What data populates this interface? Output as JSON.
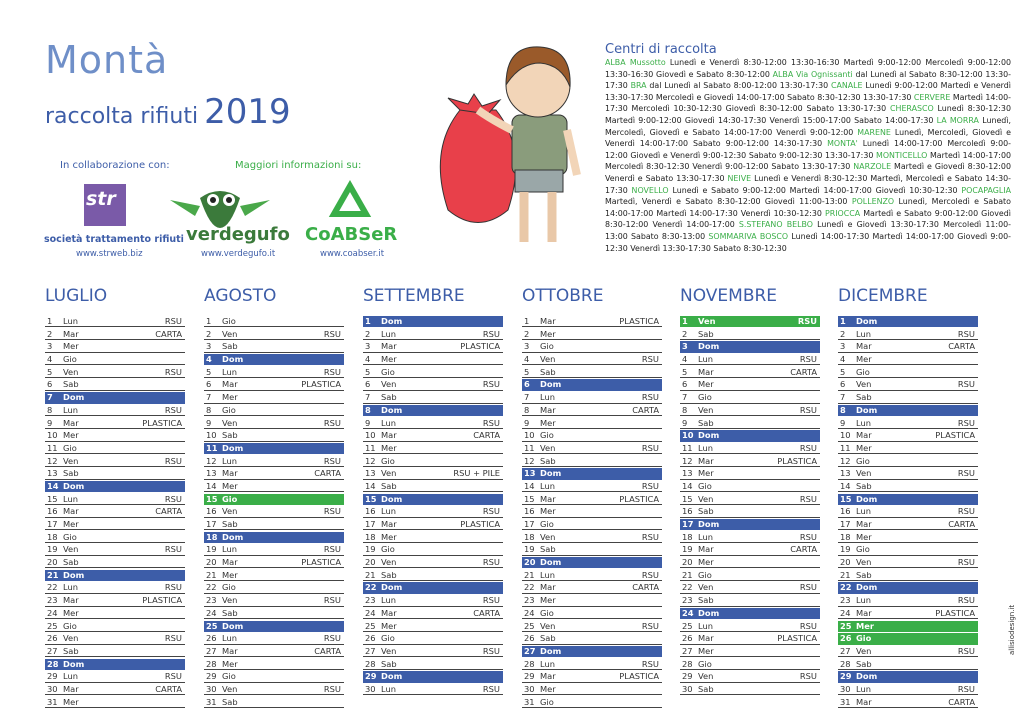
{
  "header": {
    "town": "Montà",
    "subtitle": "raccolta rifiuti",
    "year": "2019",
    "collab_label": "In collaborazione con:",
    "info_label": "Maggiori informazioni su:",
    "logos": [
      {
        "name": "str",
        "caption": "società trattamento rifiuti",
        "url": "www.strweb.biz"
      },
      {
        "name": "verdegufo",
        "url": "www.verdegufo.it"
      },
      {
        "name": "CoABSeR",
        "url": "www.coabser.it"
      }
    ]
  },
  "centers": {
    "title": "Centri di raccolta",
    "entries": [
      {
        "place": "ALBA Mussotto",
        "hours": "Lunedì e Venerdì 8:30-12:00 13:30-16:30 Martedì 9:00-12:00 Mercoledì 9:00-12:00 13:30-16:30 Giovedì e Sabato 8:30-12:00"
      },
      {
        "place": "ALBA Via Ognissanti",
        "hours": "dal Lunedì al Sabato 8:30-12:00 13:30-17:30"
      },
      {
        "place": "BRA",
        "hours": "dal Lunedì al Sabato 8:00-12:00 13:30-17:30"
      },
      {
        "place": "CANALE",
        "hours": "Lunedì 9:00-12:00 Martedì e Venerdì 13:30-17:30 Mercoledì e Giovedì 14:00-17:00 Sabato 8:30-12:30 13:30-17:30"
      },
      {
        "place": "CERVERE",
        "hours": "Martedì 14:00-17:30 Mercoledì 10:30-12:30 Giovedì 8:30-12:00 Sabato 13:30-17:30"
      },
      {
        "place": "CHERASCO",
        "hours": "Lunedì 8:30-12:30 Martedì 9:00-12:00 Giovedì 14:30-17:30 Venerdì 15:00-17:00 Sabato 14:00-17:30"
      },
      {
        "place": "LA MORRA",
        "hours": "Lunedì, Mercoledì, Giovedì e Sabato 14:00-17:00 Venerdì 9:00-12:00"
      },
      {
        "place": "MARENE",
        "hours": "Lunedì, Mercoledì, Giovedì e Venerdì 14:00-17:00 Sabato 9:00-12:00 14:30-17:30"
      },
      {
        "place": "MONTA'",
        "hours": "Lunedì 14:00-17:00 Mercoledì 9:00-12:00 Giovedì e Venerdì 9:00-12:30 Sabato 9:00-12:30 13:30-17:30"
      },
      {
        "place": "MONTICELLO",
        "hours": "Martedì 14:00-17:00 Mercoledì 8:30-12:30 Venerdì 9:00-12:00 Sabato 13:30-17:30"
      },
      {
        "place": "NARZOLE",
        "hours": "Martedì e Giovedì 8:30-12:00 Venerdì e Sabato 13:30-17:30"
      },
      {
        "place": "NEIVE",
        "hours": "Lunedì e Venerdì 8:30-12:30 Martedì, Mercoledì e Sabato 14:30-17:30"
      },
      {
        "place": "NOVELLO",
        "hours": "Lunedì e Sabato 9:00-12:00 Martedì 14:00-17:00 Giovedì 10:30-12:30"
      },
      {
        "place": "POCAPAGLIA",
        "hours": "Martedì, Venerdì e Sabato 8:30-12:00 Giovedì 11:00-13:00"
      },
      {
        "place": "POLLENZO",
        "hours": "Lunedì, Mercoledì e Sabato 14:00-17:00 Martedì 14:00-17:30 Venerdì 10:30-12:30"
      },
      {
        "place": "PRIOCCA",
        "hours": "Martedì e Sabato 9:00-12:00 Giovedì 8:30-12:00 Venerdì 14:00-17:00"
      },
      {
        "place": "S.STEFANO BELBO",
        "hours": "Lunedì e Giovedì 13:30-17:30 Mercoledì 11:00-13:00 Sabato 8:30-13:00"
      },
      {
        "place": "SOMMARIVA BOSCO",
        "hours": "Lunedì 14:00-17:30 Martedì 14:00-17:00 Giovedì 9:00-12:30 Venerdì 13:30-17:30 Sabato 8:30-12:30"
      }
    ]
  },
  "highlight_colors": {
    "blue": "#3d5da8",
    "green": "#3aae48"
  },
  "months": [
    {
      "name": "LUGLIO",
      "days": [
        {
          "n": 1,
          "w": "Lun",
          "t": "RSU"
        },
        {
          "n": 2,
          "w": "Mar",
          "t": "CARTA"
        },
        {
          "n": 3,
          "w": "Mer"
        },
        {
          "n": 4,
          "w": "Gio"
        },
        {
          "n": 5,
          "w": "Ven",
          "t": "RSU"
        },
        {
          "n": 6,
          "w": "Sab"
        },
        {
          "n": 7,
          "w": "Dom",
          "hl": "blue"
        },
        {
          "n": 8,
          "w": "Lun",
          "t": "RSU"
        },
        {
          "n": 9,
          "w": "Mar",
          "t": "PLASTICA"
        },
        {
          "n": 10,
          "w": "Mer"
        },
        {
          "n": 11,
          "w": "Gio"
        },
        {
          "n": 12,
          "w": "Ven",
          "t": "RSU"
        },
        {
          "n": 13,
          "w": "Sab"
        },
        {
          "n": 14,
          "w": "Dom",
          "hl": "blue"
        },
        {
          "n": 15,
          "w": "Lun",
          "t": "RSU"
        },
        {
          "n": 16,
          "w": "Mar",
          "t": "CARTA"
        },
        {
          "n": 17,
          "w": "Mer"
        },
        {
          "n": 18,
          "w": "Gio"
        },
        {
          "n": 19,
          "w": "Ven",
          "t": "RSU"
        },
        {
          "n": 20,
          "w": "Sab"
        },
        {
          "n": 21,
          "w": "Dom",
          "hl": "blue"
        },
        {
          "n": 22,
          "w": "Lun",
          "t": "RSU"
        },
        {
          "n": 23,
          "w": "Mar",
          "t": "PLASTICA"
        },
        {
          "n": 24,
          "w": "Mer"
        },
        {
          "n": 25,
          "w": "Gio"
        },
        {
          "n": 26,
          "w": "Ven",
          "t": "RSU"
        },
        {
          "n": 27,
          "w": "Sab"
        },
        {
          "n": 28,
          "w": "Dom",
          "hl": "blue"
        },
        {
          "n": 29,
          "w": "Lun",
          "t": "RSU"
        },
        {
          "n": 30,
          "w": "Mar",
          "t": "CARTA"
        },
        {
          "n": 31,
          "w": "Mer"
        }
      ]
    },
    {
      "name": "AGOSTO",
      "days": [
        {
          "n": 1,
          "w": "Gio"
        },
        {
          "n": 2,
          "w": "Ven",
          "t": "RSU"
        },
        {
          "n": 3,
          "w": "Sab"
        },
        {
          "n": 4,
          "w": "Dom",
          "hl": "blue"
        },
        {
          "n": 5,
          "w": "Lun",
          "t": "RSU"
        },
        {
          "n": 6,
          "w": "Mar",
          "t": "PLASTICA"
        },
        {
          "n": 7,
          "w": "Mer"
        },
        {
          "n": 8,
          "w": "Gio"
        },
        {
          "n": 9,
          "w": "Ven",
          "t": "RSU"
        },
        {
          "n": 10,
          "w": "Sab"
        },
        {
          "n": 11,
          "w": "Dom",
          "hl": "blue"
        },
        {
          "n": 12,
          "w": "Lun",
          "t": "RSU"
        },
        {
          "n": 13,
          "w": "Mar",
          "t": "CARTA"
        },
        {
          "n": 14,
          "w": "Mer"
        },
        {
          "n": 15,
          "w": "Gio",
          "hl": "green"
        },
        {
          "n": 16,
          "w": "Ven",
          "t": "RSU"
        },
        {
          "n": 17,
          "w": "Sab"
        },
        {
          "n": 18,
          "w": "Dom",
          "hl": "blue"
        },
        {
          "n": 19,
          "w": "Lun",
          "t": "RSU"
        },
        {
          "n": 20,
          "w": "Mar",
          "t": "PLASTICA"
        },
        {
          "n": 21,
          "w": "Mer"
        },
        {
          "n": 22,
          "w": "Gio"
        },
        {
          "n": 23,
          "w": "Ven",
          "t": "RSU"
        },
        {
          "n": 24,
          "w": "Sab"
        },
        {
          "n": 25,
          "w": "Dom",
          "hl": "blue"
        },
        {
          "n": 26,
          "w": "Lun",
          "t": "RSU"
        },
        {
          "n": 27,
          "w": "Mar",
          "t": "CARTA"
        },
        {
          "n": 28,
          "w": "Mer"
        },
        {
          "n": 29,
          "w": "Gio"
        },
        {
          "n": 30,
          "w": "Ven",
          "t": "RSU"
        },
        {
          "n": 31,
          "w": "Sab"
        }
      ]
    },
    {
      "name": "SETTEMBRE",
      "days": [
        {
          "n": 1,
          "w": "Dom",
          "hl": "blue"
        },
        {
          "n": 2,
          "w": "Lun",
          "t": "RSU"
        },
        {
          "n": 3,
          "w": "Mar",
          "t": "PLASTICA"
        },
        {
          "n": 4,
          "w": "Mer"
        },
        {
          "n": 5,
          "w": "Gio"
        },
        {
          "n": 6,
          "w": "Ven",
          "t": "RSU"
        },
        {
          "n": 7,
          "w": "Sab"
        },
        {
          "n": 8,
          "w": "Dom",
          "hl": "blue"
        },
        {
          "n": 9,
          "w": "Lun",
          "t": "RSU"
        },
        {
          "n": 10,
          "w": "Mar",
          "t": "CARTA"
        },
        {
          "n": 11,
          "w": "Mer"
        },
        {
          "n": 12,
          "w": "Gio"
        },
        {
          "n": 13,
          "w": "Ven",
          "t": "RSU + PILE"
        },
        {
          "n": 14,
          "w": "Sab"
        },
        {
          "n": 15,
          "w": "Dom",
          "hl": "blue"
        },
        {
          "n": 16,
          "w": "Lun",
          "t": "RSU"
        },
        {
          "n": 17,
          "w": "Mar",
          "t": "PLASTICA"
        },
        {
          "n": 18,
          "w": "Mer"
        },
        {
          "n": 19,
          "w": "Gio"
        },
        {
          "n": 20,
          "w": "Ven",
          "t": "RSU"
        },
        {
          "n": 21,
          "w": "Sab"
        },
        {
          "n": 22,
          "w": "Dom",
          "hl": "blue"
        },
        {
          "n": 23,
          "w": "Lun",
          "t": "RSU"
        },
        {
          "n": 24,
          "w": "Mar",
          "t": "CARTA"
        },
        {
          "n": 25,
          "w": "Mer"
        },
        {
          "n": 26,
          "w": "Gio"
        },
        {
          "n": 27,
          "w": "Ven",
          "t": "RSU"
        },
        {
          "n": 28,
          "w": "Sab"
        },
        {
          "n": 29,
          "w": "Dom",
          "hl": "blue"
        },
        {
          "n": 30,
          "w": "Lun",
          "t": "RSU"
        }
      ]
    },
    {
      "name": "OTTOBRE",
      "days": [
        {
          "n": 1,
          "w": "Mar",
          "t": "PLASTICA"
        },
        {
          "n": 2,
          "w": "Mer"
        },
        {
          "n": 3,
          "w": "Gio"
        },
        {
          "n": 4,
          "w": "Ven",
          "t": "RSU"
        },
        {
          "n": 5,
          "w": "Sab"
        },
        {
          "n": 6,
          "w": "Dom",
          "hl": "blue"
        },
        {
          "n": 7,
          "w": "Lun",
          "t": "RSU"
        },
        {
          "n": 8,
          "w": "Mar",
          "t": "CARTA"
        },
        {
          "n": 9,
          "w": "Mer"
        },
        {
          "n": 10,
          "w": "Gio"
        },
        {
          "n": 11,
          "w": "Ven",
          "t": "RSU"
        },
        {
          "n": 12,
          "w": "Sab"
        },
        {
          "n": 13,
          "w": "Dom",
          "hl": "blue"
        },
        {
          "n": 14,
          "w": "Lun",
          "t": "RSU"
        },
        {
          "n": 15,
          "w": "Mar",
          "t": "PLASTICA"
        },
        {
          "n": 16,
          "w": "Mer"
        },
        {
          "n": 17,
          "w": "Gio"
        },
        {
          "n": 18,
          "w": "Ven",
          "t": "RSU"
        },
        {
          "n": 19,
          "w": "Sab"
        },
        {
          "n": 20,
          "w": "Dom",
          "hl": "blue"
        },
        {
          "n": 21,
          "w": "Lun",
          "t": "RSU"
        },
        {
          "n": 22,
          "w": "Mar",
          "t": "CARTA"
        },
        {
          "n": 23,
          "w": "Mer"
        },
        {
          "n": 24,
          "w": "Gio"
        },
        {
          "n": 25,
          "w": "Ven",
          "t": "RSU"
        },
        {
          "n": 26,
          "w": "Sab"
        },
        {
          "n": 27,
          "w": "Dom",
          "hl": "blue"
        },
        {
          "n": 28,
          "w": "Lun",
          "t": "RSU"
        },
        {
          "n": 29,
          "w": "Mar",
          "t": "PLASTICA"
        },
        {
          "n": 30,
          "w": "Mer"
        },
        {
          "n": 31,
          "w": "Gio"
        }
      ]
    },
    {
      "name": "NOVEMBRE",
      "days": [
        {
          "n": 1,
          "w": "Ven",
          "t": "RSU",
          "hl": "green"
        },
        {
          "n": 2,
          "w": "Sab"
        },
        {
          "n": 3,
          "w": "Dom",
          "hl": "blue"
        },
        {
          "n": 4,
          "w": "Lun",
          "t": "RSU"
        },
        {
          "n": 5,
          "w": "Mar",
          "t": "CARTA"
        },
        {
          "n": 6,
          "w": "Mer"
        },
        {
          "n": 7,
          "w": "Gio"
        },
        {
          "n": 8,
          "w": "Ven",
          "t": "RSU"
        },
        {
          "n": 9,
          "w": "Sab"
        },
        {
          "n": 10,
          "w": "Dom",
          "hl": "blue"
        },
        {
          "n": 11,
          "w": "Lun",
          "t": "RSU"
        },
        {
          "n": 12,
          "w": "Mar",
          "t": "PLASTICA"
        },
        {
          "n": 13,
          "w": "Mer"
        },
        {
          "n": 14,
          "w": "Gio"
        },
        {
          "n": 15,
          "w": "Ven",
          "t": "RSU"
        },
        {
          "n": 16,
          "w": "Sab"
        },
        {
          "n": 17,
          "w": "Dom",
          "hl": "blue"
        },
        {
          "n": 18,
          "w": "Lun",
          "t": "RSU"
        },
        {
          "n": 19,
          "w": "Mar",
          "t": "CARTA"
        },
        {
          "n": 20,
          "w": "Mer"
        },
        {
          "n": 21,
          "w": "Gio"
        },
        {
          "n": 22,
          "w": "Ven",
          "t": "RSU"
        },
        {
          "n": 23,
          "w": "Sab"
        },
        {
          "n": 24,
          "w": "Dom",
          "hl": "blue"
        },
        {
          "n": 25,
          "w": "Lun",
          "t": "RSU"
        },
        {
          "n": 26,
          "w": "Mar",
          "t": "PLASTICA"
        },
        {
          "n": 27,
          "w": "Mer"
        },
        {
          "n": 28,
          "w": "Gio"
        },
        {
          "n": 29,
          "w": "Ven",
          "t": "RSU"
        },
        {
          "n": 30,
          "w": "Sab"
        }
      ]
    },
    {
      "name": "DICEMBRE",
      "days": [
        {
          "n": 1,
          "w": "Dom",
          "hl": "blue"
        },
        {
          "n": 2,
          "w": "Lun",
          "t": "RSU"
        },
        {
          "n": 3,
          "w": "Mar",
          "t": "CARTA"
        },
        {
          "n": 4,
          "w": "Mer"
        },
        {
          "n": 5,
          "w": "Gio"
        },
        {
          "n": 6,
          "w": "Ven",
          "t": "RSU"
        },
        {
          "n": 7,
          "w": "Sab"
        },
        {
          "n": 8,
          "w": "Dom",
          "hl": "blue"
        },
        {
          "n": 9,
          "w": "Lun",
          "t": "RSU"
        },
        {
          "n": 10,
          "w": "Mar",
          "t": "PLASTICA"
        },
        {
          "n": 11,
          "w": "Mer"
        },
        {
          "n": 12,
          "w": "Gio"
        },
        {
          "n": 13,
          "w": "Ven",
          "t": "RSU"
        },
        {
          "n": 14,
          "w": "Sab"
        },
        {
          "n": 15,
          "w": "Dom",
          "hl": "blue"
        },
        {
          "n": 16,
          "w": "Lun",
          "t": "RSU"
        },
        {
          "n": 17,
          "w": "Mar",
          "t": "CARTA"
        },
        {
          "n": 18,
          "w": "Mer"
        },
        {
          "n": 19,
          "w": "Gio"
        },
        {
          "n": 20,
          "w": "Ven",
          "t": "RSU"
        },
        {
          "n": 21,
          "w": "Sab"
        },
        {
          "n": 22,
          "w": "Dom",
          "hl": "blue"
        },
        {
          "n": 23,
          "w": "Lun",
          "t": "RSU"
        },
        {
          "n": 24,
          "w": "Mar",
          "t": "PLASTICA"
        },
        {
          "n": 25,
          "w": "Mer",
          "hl": "green"
        },
        {
          "n": 26,
          "w": "Gio",
          "hl": "green"
        },
        {
          "n": 27,
          "w": "Ven",
          "t": "RSU"
        },
        {
          "n": 28,
          "w": "Sab"
        },
        {
          "n": 29,
          "w": "Dom",
          "hl": "blue"
        },
        {
          "n": 30,
          "w": "Lun",
          "t": "RSU"
        },
        {
          "n": 31,
          "w": "Mar",
          "t": "CARTA"
        }
      ]
    }
  ],
  "credit": "allisiodesign.it"
}
